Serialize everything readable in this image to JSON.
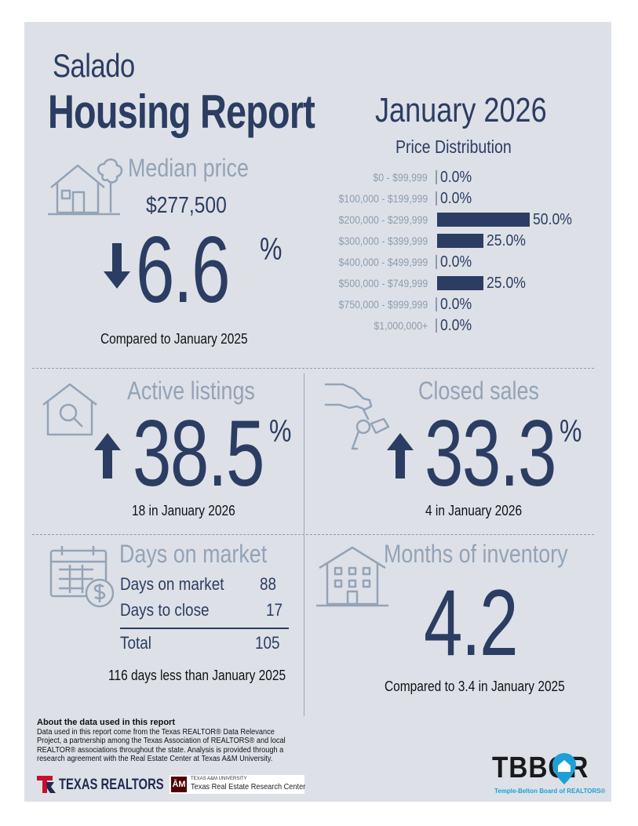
{
  "header": {
    "city": "Salado",
    "title": "Housing Report",
    "period": "January 2026"
  },
  "median_price": {
    "label": "Median price",
    "value": "$277,500",
    "change": "6.6",
    "change_unit": "%",
    "direction": "down",
    "compare": "Compared to January 2025"
  },
  "price_distribution": {
    "title": "Price Distribution",
    "rows": [
      {
        "range": "$0 - $99,999",
        "percent": 0.0,
        "label": "0.0%"
      },
      {
        "range": "$100,000 - $199,999",
        "percent": 0.0,
        "label": "0.0%"
      },
      {
        "range": "$200,000 - $299,999",
        "percent": 50.0,
        "label": "50.0%"
      },
      {
        "range": "$300,000 - $399,999",
        "percent": 25.0,
        "label": "25.0%"
      },
      {
        "range": "$400,000 - $499,999",
        "percent": 0.0,
        "label": "0.0%"
      },
      {
        "range": "$500,000 - $749,999",
        "percent": 25.0,
        "label": "25.0%"
      },
      {
        "range": "$750,000 - $999,999",
        "percent": 0.0,
        "label": "0.0%"
      },
      {
        "range": "$1,000,000+",
        "percent": 0.0,
        "label": "0.0%"
      }
    ]
  },
  "active_listings": {
    "label": "Active listings",
    "change": "38.5",
    "change_unit": "%",
    "direction": "up",
    "caption": "18 in January 2026"
  },
  "closed_sales": {
    "label": "Closed sales",
    "change": "33.3",
    "change_unit": "%",
    "direction": "up",
    "caption": "4 in January 2026"
  },
  "days_on_market": {
    "label": "Days on market",
    "rows": [
      {
        "name": "Days on market",
        "value": "88"
      },
      {
        "name": "Days to close",
        "value": "17"
      }
    ],
    "total_label": "Total",
    "total_value": "105",
    "caption": "116 days less than January 2025"
  },
  "months_inventory": {
    "label": "Months of inventory",
    "value": "4.2",
    "caption": "Compared to 3.4 in January 2025"
  },
  "about": {
    "title": "About the data used in this report",
    "text": "Data used in this report come from the Texas REALTOR® Data Relevance Project, a partnership among the Texas Association of REALTORS® and local REALTOR® associations throughout the state. Analysis is provided through a research agreement with the Real Estate Center at Texas A&M University."
  },
  "logos": {
    "texas_realtors": "TEXAS REALTORS",
    "tamu_small": "TEXAS A&M UNIVERSITY",
    "tamu_center": "Texas Real Estate Research Center",
    "tbbor": "TBBOR",
    "tbbor_full": "Temple-Belton Board of REALTORS®"
  },
  "colors": {
    "navy": "#2c3d63",
    "steel": "#93a3b8",
    "panel": "#dde1e7",
    "tbbor_blue": "#1f9fd6",
    "texas_red": "#c8102e",
    "maroon": "#500000"
  }
}
